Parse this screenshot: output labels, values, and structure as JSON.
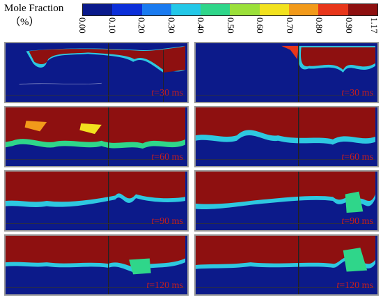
{
  "legend": {
    "title": "Mole Fraction",
    "unit": "（%）",
    "ticks": [
      "0.00",
      "0.10",
      "0.20",
      "0.30",
      "0.40",
      "0.50",
      "0.60",
      "0.70",
      "0.80",
      "0.90",
      "1.17"
    ],
    "colors": [
      "#0a1a8c",
      "#0b2fd9",
      "#1a7bf0",
      "#23c8e8",
      "#2fd68a",
      "#9be03a",
      "#f2e21e",
      "#f29a1a",
      "#e8361a",
      "#8e1010"
    ]
  },
  "panels": [
    {
      "time_var": "t",
      "time_text": "=30 ms"
    },
    {
      "time_var": "t",
      "time_text": "=30 ms"
    },
    {
      "time_var": "t",
      "time_text": "=60 ms"
    },
    {
      "time_var": "t",
      "time_text": "=60 ms"
    },
    {
      "time_var": "t",
      "time_text": "=90 ms"
    },
    {
      "time_var": "t",
      "time_text": "=90 ms"
    },
    {
      "time_var": "t",
      "time_text": "=120 ms"
    },
    {
      "time_var": "t",
      "time_text": "=120 ms"
    }
  ]
}
